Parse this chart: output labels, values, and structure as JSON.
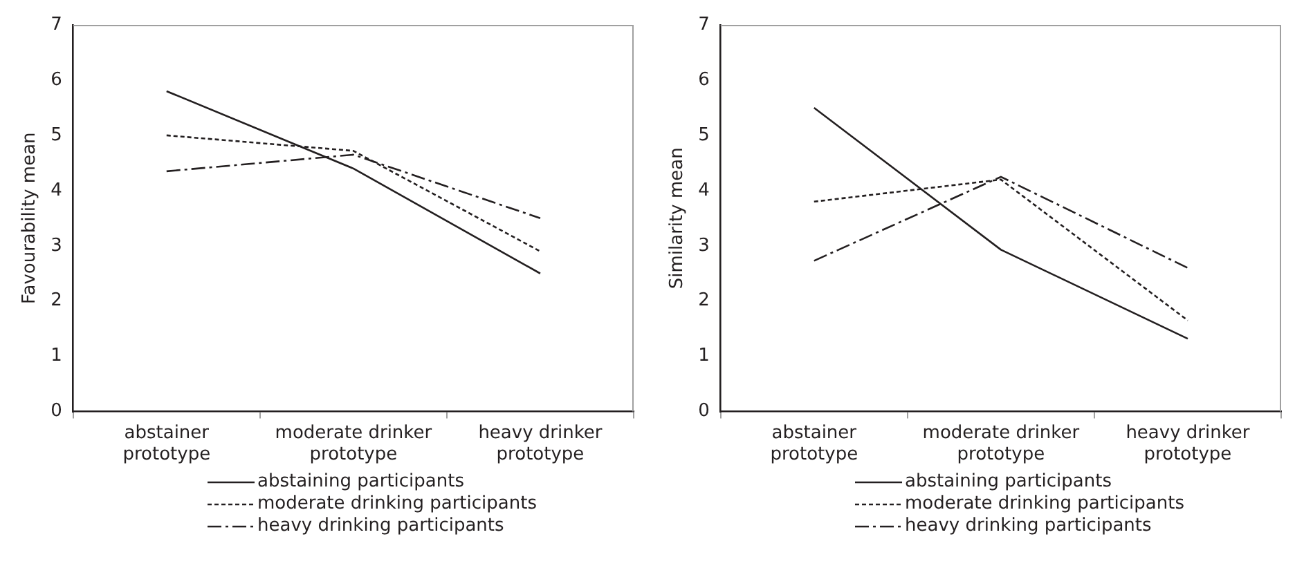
{
  "chart_data": [
    {
      "type": "line",
      "ylabel": "Favourability mean",
      "categories": [
        "abstainer prototype",
        "moderate drinker prototype",
        "heavy drinker prototype"
      ],
      "ylim": [
        0,
        7
      ],
      "yticks": [
        0,
        1,
        2,
        3,
        4,
        5,
        6,
        7
      ],
      "legend": "bottom",
      "marker": "none",
      "series": [
        {
          "name": "abstaining participants",
          "color": "#231f20",
          "line_style": "solid",
          "values": [
            5.8,
            4.4,
            2.5
          ]
        },
        {
          "name": "moderate drinking participants",
          "color": "#231f20",
          "line_style": "dashed",
          "values": [
            5.0,
            4.72,
            2.9
          ]
        },
        {
          "name": "heavy drinking participants",
          "color": "#231f20",
          "line_style": "dashdot",
          "values": [
            4.35,
            4.65,
            3.5
          ]
        }
      ]
    },
    {
      "type": "line",
      "ylabel": "Similarity mean",
      "categories": [
        "abstainer prototype",
        "moderate drinker prototype",
        "heavy drinker prototype"
      ],
      "ylim": [
        0,
        7
      ],
      "yticks": [
        0,
        1,
        2,
        3,
        4,
        5,
        6,
        7
      ],
      "legend": "bottom",
      "marker": "none",
      "series": [
        {
          "name": "abstaining participants",
          "color": "#231f20",
          "line_style": "solid",
          "values": [
            5.5,
            2.93,
            1.32
          ]
        },
        {
          "name": "moderate drinking participants",
          "color": "#231f20",
          "line_style": "dashed",
          "values": [
            3.8,
            4.2,
            1.65
          ]
        },
        {
          "name": "heavy drinking participants",
          "color": "#231f20",
          "line_style": "dashdot",
          "values": [
            2.73,
            4.25,
            2.6
          ]
        }
      ]
    }
  ]
}
